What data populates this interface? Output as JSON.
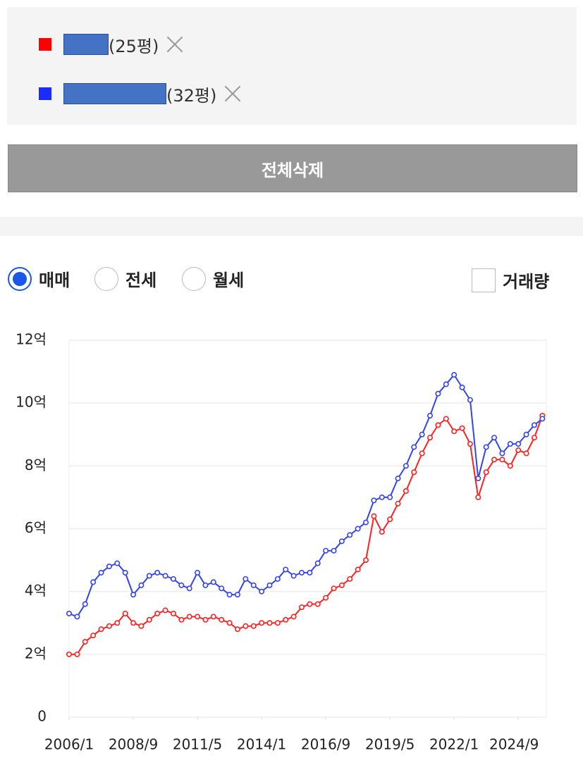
{
  "ui": {
    "delete_all": "전체삭제",
    "trade_types": [
      "매매",
      "전세",
      "월세"
    ],
    "selected_trade_type": 0,
    "volume_label": "거래량"
  },
  "chart_data": {
    "type": "line",
    "x": [
      "2006/1",
      "2006/5",
      "2006/9",
      "2007/1",
      "2007/5",
      "2007/9",
      "2008/1",
      "2008/5",
      "2008/9",
      "2009/1",
      "2009/5",
      "2009/9",
      "2010/1",
      "2010/5",
      "2010/9",
      "2011/1",
      "2011/5",
      "2011/9",
      "2012/1",
      "2012/5",
      "2012/9",
      "2013/1",
      "2013/5",
      "2013/9",
      "2014/1",
      "2014/5",
      "2014/9",
      "2015/1",
      "2015/5",
      "2015/9",
      "2016/1",
      "2016/5",
      "2016/9",
      "2017/1",
      "2017/5",
      "2017/9",
      "2018/1",
      "2018/5",
      "2018/9",
      "2019/1",
      "2019/5",
      "2019/9",
      "2020/1",
      "2020/5",
      "2020/9",
      "2021/1",
      "2021/5",
      "2021/9",
      "2022/1",
      "2022/5",
      "2022/9",
      "2023/1",
      "2023/5",
      "2023/9",
      "2024/1",
      "2024/5",
      "2024/9",
      "2025/1",
      "2025/5",
      "2025/9"
    ],
    "series": [
      {
        "name": "(25평)",
        "color": "#ff2020",
        "values": [
          2.0,
          2.0,
          2.4,
          2.6,
          2.8,
          2.9,
          3.0,
          3.3,
          3.0,
          2.9,
          3.1,
          3.3,
          3.4,
          3.3,
          3.1,
          3.2,
          3.2,
          3.1,
          3.2,
          3.1,
          3.0,
          2.8,
          2.9,
          2.9,
          3.0,
          3.0,
          3.0,
          3.1,
          3.2,
          3.5,
          3.6,
          3.6,
          3.8,
          4.1,
          4.2,
          4.4,
          4.7,
          5.0,
          6.4,
          5.9,
          6.3,
          6.8,
          7.2,
          7.8,
          8.4,
          8.9,
          9.3,
          9.5,
          9.1,
          9.2,
          8.7,
          7.0,
          7.8,
          8.2,
          8.2,
          8.0,
          8.5,
          8.4,
          8.9,
          9.6
        ]
      },
      {
        "name": "(32평)",
        "color": "#3344ee",
        "values": [
          3.3,
          3.2,
          3.6,
          4.3,
          4.6,
          4.8,
          4.9,
          4.6,
          3.9,
          4.2,
          4.5,
          4.6,
          4.5,
          4.4,
          4.2,
          4.1,
          4.6,
          4.2,
          4.3,
          4.1,
          3.9,
          3.9,
          4.4,
          4.2,
          4.0,
          4.2,
          4.4,
          4.7,
          4.5,
          4.6,
          4.6,
          4.9,
          5.3,
          5.3,
          5.6,
          5.8,
          6.0,
          6.2,
          6.9,
          7.0,
          7.0,
          7.6,
          8.0,
          8.6,
          9.0,
          9.6,
          10.3,
          10.6,
          10.9,
          10.5,
          10.1,
          7.6,
          8.6,
          8.9,
          8.4,
          8.7,
          8.7,
          9.0,
          9.3,
          9.5
        ]
      }
    ],
    "xlim": [
      "2006/1",
      "2025/11"
    ],
    "xticks": [
      "2006/1",
      "2008/9",
      "2011/5",
      "2014/1",
      "2016/9",
      "2019/5",
      "2022/1",
      "2024/9"
    ],
    "ylim": [
      0,
      12
    ],
    "yticks": [
      0,
      {
        "value": 2,
        "label": "2억"
      },
      {
        "value": 4,
        "label": "4억"
      },
      {
        "value": 6,
        "label": "6억"
      },
      {
        "value": 8,
        "label": "8억"
      },
      {
        "value": 10,
        "label": "10억"
      },
      {
        "value": 12,
        "label": "12억"
      }
    ],
    "grid": true
  }
}
